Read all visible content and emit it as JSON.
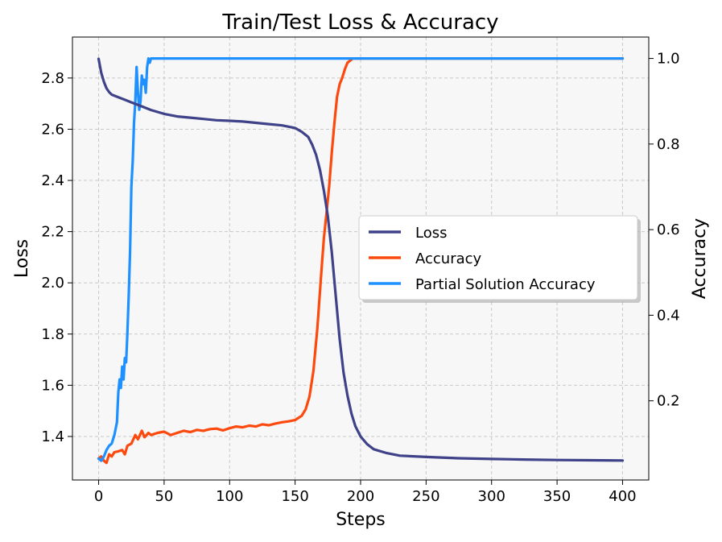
{
  "chart_data": {
    "type": "line",
    "title": "Train/Test Loss & Accuracy",
    "xlabel": "Steps",
    "ylabel": "Loss",
    "y2label": "Accuracy",
    "xlim": [
      -20,
      420
    ],
    "ylim": [
      1.23,
      2.96
    ],
    "y2lim": [
      0.015,
      1.05
    ],
    "xticks": [
      0,
      50,
      100,
      150,
      200,
      250,
      300,
      350,
      400
    ],
    "yticks": [
      1.4,
      1.6,
      1.8,
      2.0,
      2.2,
      2.4,
      2.6,
      2.8
    ],
    "y2ticks": [
      0.2,
      0.4,
      0.6,
      0.8,
      1.0
    ],
    "grid": true,
    "legend_position": "center-right",
    "series": [
      {
        "name": "Loss",
        "axis": "left",
        "color": "#3f4289",
        "x": [
          0,
          2,
          4,
          6,
          8,
          10,
          15,
          20,
          25,
          30,
          35,
          40,
          50,
          60,
          70,
          80,
          90,
          100,
          110,
          120,
          130,
          140,
          150,
          155,
          160,
          163,
          166,
          169,
          172,
          175,
          178,
          181,
          184,
          187,
          190,
          193,
          196,
          200,
          205,
          210,
          220,
          230,
          250,
          275,
          300,
          325,
          350,
          375,
          400
        ],
        "y": [
          2.875,
          2.82,
          2.785,
          2.76,
          2.745,
          2.735,
          2.725,
          2.715,
          2.705,
          2.695,
          2.685,
          2.675,
          2.66,
          2.65,
          2.645,
          2.64,
          2.635,
          2.633,
          2.63,
          2.625,
          2.62,
          2.615,
          2.605,
          2.59,
          2.57,
          2.54,
          2.5,
          2.44,
          2.36,
          2.26,
          2.12,
          1.95,
          1.78,
          1.65,
          1.56,
          1.49,
          1.44,
          1.4,
          1.37,
          1.35,
          1.335,
          1.325,
          1.32,
          1.315,
          1.312,
          1.31,
          1.308,
          1.307,
          1.306
        ]
      },
      {
        "name": "Accuracy",
        "axis": "right",
        "color": "#fc4a0e",
        "x": [
          0,
          2,
          4,
          6,
          8,
          10,
          12,
          15,
          18,
          20,
          22,
          25,
          28,
          30,
          33,
          35,
          38,
          40,
          45,
          50,
          55,
          60,
          65,
          70,
          75,
          80,
          85,
          90,
          95,
          100,
          105,
          110,
          115,
          120,
          125,
          130,
          135,
          140,
          145,
          150,
          155,
          158,
          161,
          164,
          167,
          170,
          172,
          174,
          176,
          178,
          180,
          182,
          184,
          186,
          188,
          190,
          192,
          194,
          196,
          198,
          200,
          250,
          300,
          350,
          400
        ],
        "y": [
          0.065,
          0.07,
          0.06,
          0.055,
          0.075,
          0.07,
          0.08,
          0.082,
          0.085,
          0.075,
          0.095,
          0.1,
          0.12,
          0.11,
          0.13,
          0.115,
          0.125,
          0.12,
          0.125,
          0.128,
          0.12,
          0.125,
          0.13,
          0.127,
          0.132,
          0.13,
          0.134,
          0.135,
          0.131,
          0.136,
          0.14,
          0.138,
          0.142,
          0.14,
          0.145,
          0.143,
          0.147,
          0.15,
          0.152,
          0.155,
          0.165,
          0.18,
          0.21,
          0.27,
          0.37,
          0.5,
          0.58,
          0.64,
          0.7,
          0.78,
          0.85,
          0.91,
          0.94,
          0.955,
          0.975,
          0.99,
          0.995,
          1.0,
          1.0,
          1.0,
          1.0,
          1.0,
          1.0,
          1.0,
          1.0
        ]
      },
      {
        "name": "Partial Solution Accuracy",
        "axis": "right",
        "color": "#1e90ff",
        "x": [
          0,
          2,
          4,
          6,
          8,
          10,
          12,
          14,
          15,
          16,
          17,
          18,
          19,
          20,
          21,
          22,
          23,
          24,
          25,
          26,
          27,
          28,
          29,
          30,
          31,
          32,
          33,
          34,
          35,
          36,
          37,
          38,
          39,
          40,
          45,
          50,
          100,
          150,
          200,
          250,
          300,
          350,
          400
        ],
        "y": [
          0.065,
          0.06,
          0.07,
          0.085,
          0.095,
          0.1,
          0.12,
          0.15,
          0.22,
          0.25,
          0.23,
          0.28,
          0.25,
          0.3,
          0.29,
          0.36,
          0.45,
          0.55,
          0.7,
          0.76,
          0.85,
          0.9,
          0.98,
          0.92,
          0.88,
          0.9,
          0.96,
          0.94,
          0.95,
          0.92,
          0.98,
          1.0,
          0.99,
          1.0,
          1.0,
          1.0,
          1.0,
          1.0,
          1.0,
          1.0,
          1.0,
          1.0,
          1.0
        ]
      }
    ]
  }
}
